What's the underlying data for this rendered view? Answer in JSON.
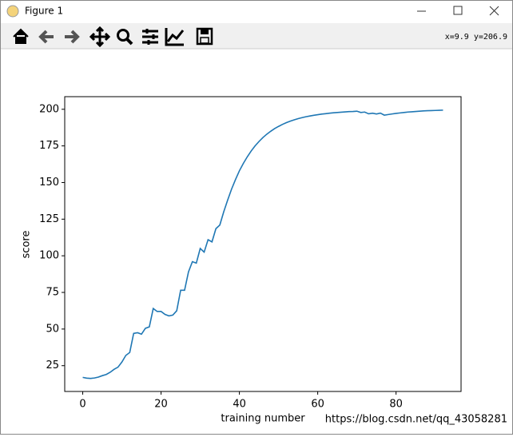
{
  "window": {
    "title": "Figure 1"
  },
  "toolbar": {
    "coordinates": "x=9.9 y=206.9"
  },
  "watermark": "https://blog.csdn.net/qq_43058281",
  "chart_data": {
    "type": "line",
    "xlabel": "training number",
    "ylabel": "score",
    "color": "#1f77b4",
    "x": [
      0,
      1,
      2,
      3,
      4,
      5,
      6,
      7,
      8,
      9,
      10,
      11,
      12,
      13,
      14,
      15,
      16,
      17,
      18,
      19,
      20,
      21,
      22,
      23,
      24,
      25,
      26,
      27,
      28,
      29,
      30,
      31,
      32,
      33,
      34,
      35,
      36,
      37,
      38,
      39,
      40,
      41,
      42,
      43,
      44,
      45,
      46,
      47,
      48,
      49,
      50,
      51,
      52,
      53,
      54,
      55,
      56,
      57,
      58,
      59,
      60,
      61,
      62,
      63,
      64,
      65,
      66,
      67,
      68,
      69,
      70,
      71,
      72,
      73,
      74,
      75,
      76,
      77,
      78,
      79,
      80,
      81,
      82,
      83,
      84,
      85,
      86,
      87,
      88,
      89,
      90,
      91,
      92
    ],
    "values": [
      17,
      16.5,
      16.3,
      16.6,
      17.2,
      18.2,
      19,
      20.5,
      22.5,
      24,
      27.5,
      32,
      34,
      47,
      47.5,
      46.5,
      50.5,
      51.5,
      64,
      62,
      62,
      60,
      59,
      59.5,
      62.5,
      76.5,
      76.5,
      89,
      96,
      95,
      105,
      102.5,
      111,
      109.5,
      118.5,
      121,
      130,
      138,
      145.5,
      152,
      158,
      163,
      167.5,
      171.5,
      175,
      178,
      180.7,
      183,
      185,
      186.8,
      188.3,
      189.7,
      190.9,
      191.9,
      192.8,
      193.6,
      194.3,
      194.9,
      195.4,
      195.9,
      196.3,
      196.7,
      197,
      197.3,
      197.6,
      197.8,
      198,
      198.2,
      198.4,
      198.5,
      198.7,
      197.8,
      198.1,
      196.9,
      197.3,
      196.8,
      197.4,
      196,
      196.4,
      196.8,
      197.2,
      197.5,
      197.8,
      198.1,
      198.3,
      198.5,
      198.7,
      198.9,
      199,
      199.1,
      199.2,
      199.3,
      199.4
    ],
    "xlim": [
      -4.6,
      96.6
    ],
    "ylim": [
      7.4,
      208.6
    ],
    "xticks": [
      0,
      20,
      40,
      60,
      80
    ],
    "yticks": [
      25,
      50,
      75,
      100,
      125,
      150,
      175,
      200
    ]
  }
}
